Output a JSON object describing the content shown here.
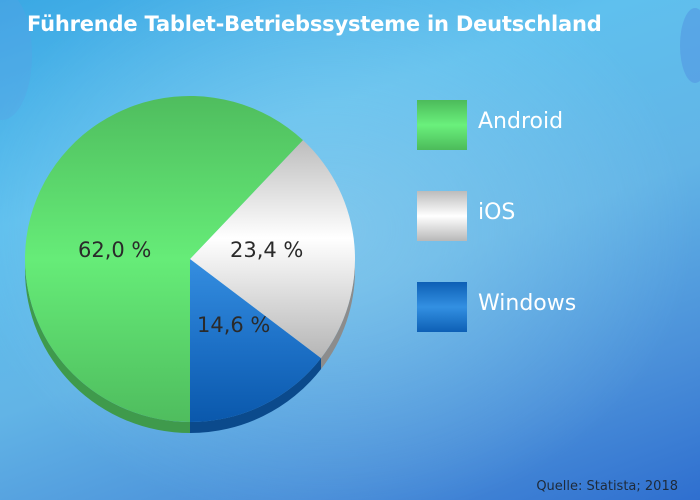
{
  "title": "Führende Tablet-Betriebssysteme in Deutschland",
  "source": "Quelle: Statista; 2018",
  "chart_data": {
    "type": "pie",
    "title": "Führende Tablet-Betriebssysteme in Deutschland",
    "categories": [
      "Android",
      "iOS",
      "Windows"
    ],
    "values": [
      62.0,
      23.4,
      14.6
    ],
    "unit": "%",
    "data_labels": [
      "62,0 %",
      "23,4 %",
      "14,6 %"
    ],
    "colors": {
      "Android": "#5ee06e",
      "iOS": "#e8e8e8",
      "Windows": "#1e72c8"
    },
    "legend_position": "right",
    "start_angle": "6 o'clock, Windows then iOS counter-clockwise",
    "source": "Quelle: Statista; 2018"
  },
  "legend": [
    {
      "label": "Android",
      "icon": "android-swatch"
    },
    {
      "label": "iOS",
      "icon": "ios-swatch"
    },
    {
      "label": "Windows",
      "icon": "windows-swatch"
    }
  ]
}
